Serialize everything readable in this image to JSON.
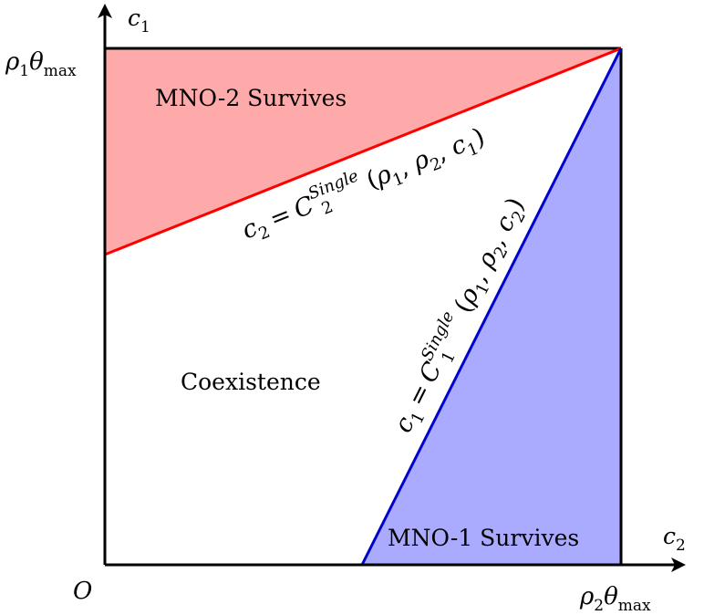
{
  "axes": {
    "origin_label": "O",
    "x_axis": {
      "symbol": "c",
      "subscript": "2",
      "max_label": {
        "symbol": "ρ",
        "subscript": "2",
        "theta": "θ",
        "theta_subscript": "max"
      }
    },
    "y_axis": {
      "symbol": "c",
      "subscript": "1",
      "max_label": {
        "symbol": "ρ",
        "subscript": "1",
        "theta": "θ",
        "theta_subscript": "max"
      }
    }
  },
  "regions": {
    "mno2": {
      "label": "MNO-2 Survives",
      "fill_color": "#ffaaaa"
    },
    "mno1": {
      "label": "MNO-1 Survives",
      "fill_color": "#aaaaff"
    },
    "coexistence": {
      "label": "Coexistence"
    }
  },
  "curves": {
    "red": {
      "color": "#ff0000",
      "lhs_symbol": "c",
      "lhs_subscript": "2",
      "equals": "=",
      "func_symbol": "C",
      "func_subscript": "2",
      "func_superscript": "Single",
      "args_open": "(",
      "arg1": "ρ",
      "arg1_sub": "1",
      "comma1": ", ",
      "arg2": "ρ",
      "arg2_sub": "2",
      "comma2": ", ",
      "arg3": "c",
      "arg3_sub": "1",
      "args_close": ")"
    },
    "blue": {
      "color": "#0000cc",
      "lhs_symbol": "c",
      "lhs_subscript": "1",
      "equals": "=",
      "func_symbol": "C",
      "func_subscript": "1",
      "func_superscript": "Single",
      "args_open": "(",
      "arg1": "ρ",
      "arg1_sub": "1",
      "comma1": ", ",
      "arg2": "ρ",
      "arg2_sub": "2",
      "comma2": ", ",
      "arg3": "c",
      "arg3_sub": "2",
      "args_close": ")"
    }
  }
}
